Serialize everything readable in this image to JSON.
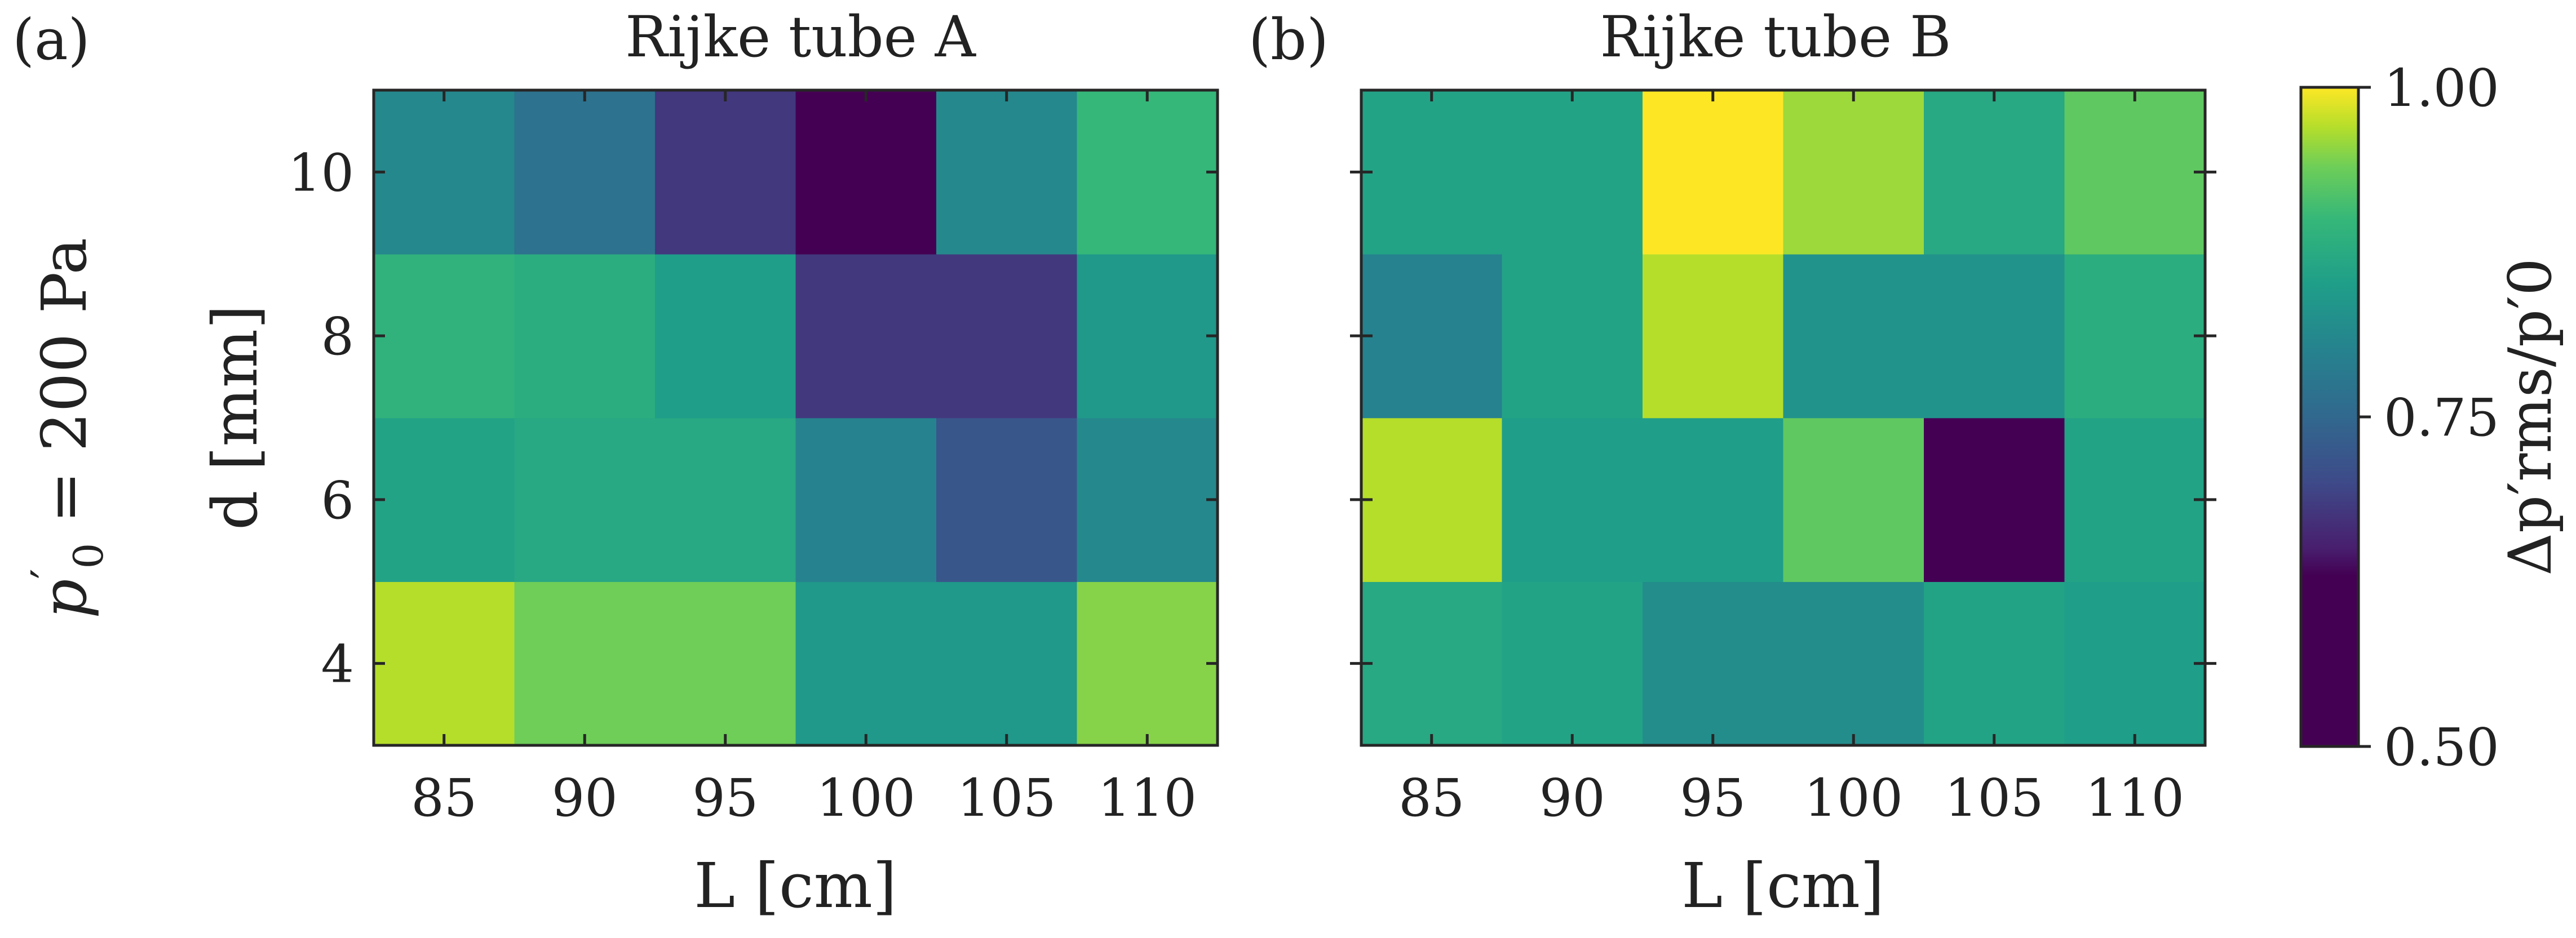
{
  "figure": {
    "row_label_main": "p",
    "row_label_sup": "′",
    "row_label_sub": "0",
    "row_label_rest": " = 200 Pa",
    "colorbar_ticks": [
      "1.00",
      "0.75",
      "0.50"
    ],
    "colorbar_label": "Δp′rms/p′0"
  },
  "chart_data": [
    {
      "type": "heatmap",
      "panel_label": "(a)",
      "title": "Rijke tube A",
      "xlabel": "L [cm]",
      "ylabel": "d [mm]",
      "x": [
        85,
        90,
        95,
        100,
        105,
        110
      ],
      "x_tick_labels": [
        "85",
        "90",
        "95",
        "100",
        "105",
        "110"
      ],
      "y": [
        4,
        6,
        8,
        10
      ],
      "y_tick_labels": [
        "4",
        "6",
        "8",
        "10"
      ],
      "values": [
        [
          0.97,
          0.94,
          0.94,
          0.84,
          0.84,
          0.95
        ],
        [
          0.86,
          0.87,
          0.87,
          0.8,
          0.72,
          0.81
        ],
        [
          0.89,
          0.88,
          0.85,
          0.68,
          0.68,
          0.84
        ],
        [
          0.81,
          0.77,
          0.68,
          0.63,
          0.81,
          0.9
        ]
      ],
      "clim": [
        0.5,
        1.0
      ]
    },
    {
      "type": "heatmap",
      "panel_label": "(b)",
      "title": "Rijke tube B",
      "xlabel": "L [cm]",
      "ylabel": "",
      "x": [
        85,
        90,
        95,
        100,
        105,
        110
      ],
      "x_tick_labels": [
        "85",
        "90",
        "95",
        "100",
        "105",
        "110"
      ],
      "y": [
        4,
        6,
        8,
        10
      ],
      "y_tick_labels": [],
      "values": [
        [
          0.87,
          0.86,
          0.82,
          0.82,
          0.86,
          0.85
        ],
        [
          0.97,
          0.85,
          0.85,
          0.93,
          0.63,
          0.86
        ],
        [
          0.8,
          0.86,
          0.97,
          0.83,
          0.83,
          0.88
        ],
        [
          0.86,
          0.86,
          1.0,
          0.96,
          0.87,
          0.93
        ]
      ],
      "clim": [
        0.5,
        1.0
      ]
    }
  ]
}
